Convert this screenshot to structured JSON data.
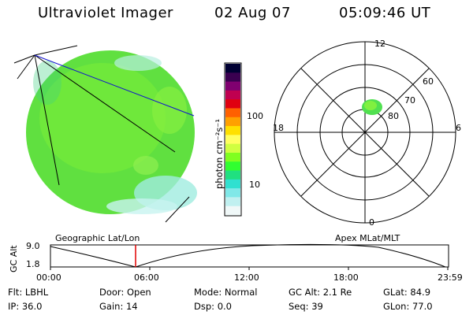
{
  "header": {
    "instrument": "Ultraviolet Imager",
    "date": "02 Aug 07",
    "time": "05:09:46 UT"
  },
  "colorbar": {
    "unit_label": "photon cm⁻²s⁻¹",
    "ticks": [
      "100",
      "10"
    ],
    "colors": [
      "#000033",
      "#3a0050",
      "#800070",
      "#c00050",
      "#e00010",
      "#ff6000",
      "#ffa000",
      "#ffe000",
      "#ffff60",
      "#d0ff40",
      "#80ff20",
      "#30ff30",
      "#20e080",
      "#30e0d0",
      "#80e8e8",
      "#c0f0f0",
      "#f0f8f8"
    ]
  },
  "polar_plot": {
    "labels": {
      "top": "12",
      "left": "18",
      "right": "6",
      "bottom": "0"
    },
    "rings": [
      "60",
      "70",
      "80"
    ]
  },
  "timeline": {
    "left_title": "Geographic Lat/Lon",
    "right_title": "Apex MLat/MLT",
    "ylabel": "GC Alt",
    "ytick_top": "9.0",
    "ytick_bottom": "1.8",
    "xticks": [
      "00:00",
      "06:00",
      "12:00",
      "18:00",
      "23:59"
    ],
    "marker_time": "05:09:46"
  },
  "status": {
    "row1": [
      {
        "label": "Flt:",
        "value": "LBHL"
      },
      {
        "label": "Door:",
        "value": "Open"
      },
      {
        "label": "Mode:",
        "value": "Normal"
      },
      {
        "label": "GC Alt:",
        "value": "2.1 Re"
      },
      {
        "label": "GLat:",
        "value": "84.9"
      }
    ],
    "row2": [
      {
        "label": "IP:",
        "value": "36.0"
      },
      {
        "label": "Gain:",
        "value": "14"
      },
      {
        "label": "Dsp:",
        "value": "0.0"
      },
      {
        "label": "Seq:",
        "value": "39"
      },
      {
        "label": "GLon:",
        "value": "77.0"
      }
    ]
  }
}
